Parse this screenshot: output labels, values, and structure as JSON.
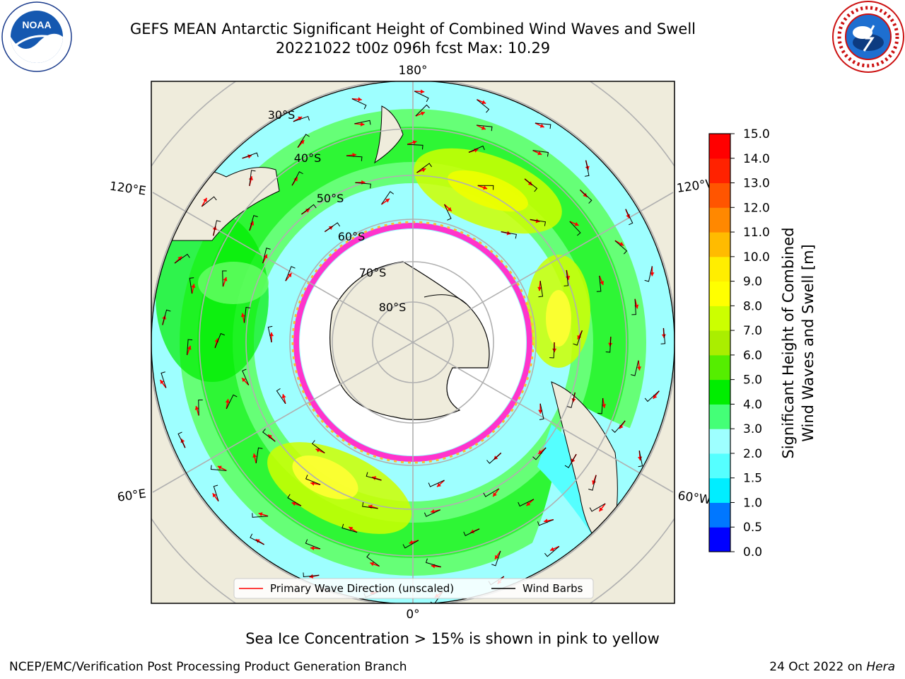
{
  "header": {
    "title_line1": "GEFS MEAN Antarctic Significant Height of Combined Wind Waves and Swell",
    "title_line2": "20221022 t00z 096h fcst   Max: 10.29"
  },
  "logos": {
    "left": "NOAA",
    "right": "NATIONAL WEATHER SERVICE"
  },
  "map": {
    "projection": "south-polar-stereographic",
    "lon_labels": {
      "top": "180°",
      "bottom": "0°",
      "upper_left": "120°E",
      "upper_right": "120°W",
      "lower_left": "60°E",
      "lower_right": "60°W"
    },
    "lat_labels": [
      "30°S",
      "40°S",
      "50°S",
      "60°S",
      "70°S",
      "80°S"
    ],
    "legend": {
      "wave_direction": "Primary Wave Direction (unscaled)",
      "wind_barbs": "Wind Barbs"
    },
    "colors": {
      "land": "#efecdc",
      "ocean_low": "#9effff",
      "grid": "#b0b0b0",
      "arrow": "#ff0000",
      "sea_ice": "#ff33cc"
    }
  },
  "colorbar": {
    "label_line1": "Significant Height of Combined",
    "label_line2": "Wind Waves and Swell [m]",
    "ticks": [
      "0.0",
      "0.5",
      "1.0",
      "1.5",
      "2.0",
      "3.0",
      "4.0",
      "5.0",
      "6.0",
      "7.0",
      "8.0",
      "9.0",
      "10.0",
      "11.0",
      "12.0",
      "13.0",
      "14.0",
      "15.0"
    ],
    "colors": [
      "#0000ff",
      "#0077ff",
      "#00eeff",
      "#55ffff",
      "#9effff",
      "#44ff77",
      "#00ee00",
      "#55ee00",
      "#aaee00",
      "#ccff00",
      "#ffff00",
      "#ffee00",
      "#ffbb00",
      "#ff8800",
      "#ff5500",
      "#ff2200",
      "#ff0000"
    ]
  },
  "footer": {
    "note": "Sea Ice Concentration > 15% is shown in pink to yellow",
    "left": "NCEP/EMC/Verification Post Processing Product Generation Branch",
    "right_prefix": "24 Oct 2022 on ",
    "right_host": "Hera"
  }
}
